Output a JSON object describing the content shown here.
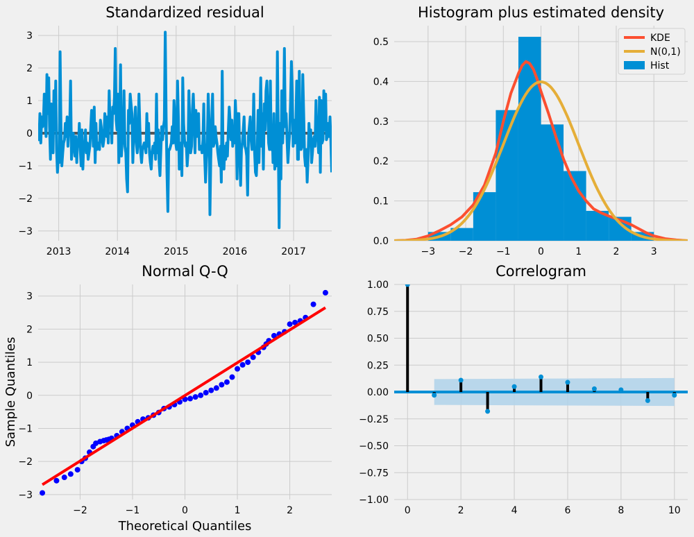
{
  "colors": {
    "background": "#f0f0f0",
    "grid": "#cbcbcb",
    "series_blue": "#008fd5",
    "kde": "#fc4f30",
    "normal": "#e5ae38",
    "qq_points": "#0000ff",
    "qq_line": "#ff0000",
    "zero_line_gray": "#555555",
    "stem": "#000000",
    "band": "#b3d4ea"
  },
  "chart_data": [
    {
      "id": "residual",
      "type": "line",
      "title": "Standardized residual",
      "xlabel": "",
      "ylabel": "",
      "xlim": [
        2012.65,
        2017.65
      ],
      "ylim": [
        -3.3,
        3.3
      ],
      "x_ticks": [
        2013,
        2014,
        2015,
        2016,
        2017
      ],
      "x_tick_labels": [
        "2013",
        "2014",
        "2015",
        "2016",
        "2017"
      ],
      "y_ticks": [
        -3,
        -2,
        -1,
        0,
        1,
        2,
        3
      ],
      "y_tick_labels": [
        "−3",
        "−2",
        "−1",
        "0",
        "1",
        "2",
        "3"
      ],
      "grid": true,
      "zero_line": 0,
      "x_start": 2012.65,
      "x_end": 2017.65,
      "values": [
        0.3,
        -0.2,
        0.6,
        -0.3,
        0.5,
        0.2,
        0.4,
        1.2,
        0.3,
        -0.1,
        1.8,
        0.6,
        1.7,
        0.2,
        -0.8,
        0.9,
        0.7,
        -0.6,
        1.3,
        0.1,
        1.6,
        -0.5,
        -1.2,
        -0.8,
        -0.9,
        2.5,
        0.3,
        -1,
        -0.6,
        -0.3,
        -0.2,
        0.3,
        -0.1,
        0.5,
        -0.4,
        0.2,
        0.3,
        1.6,
        -0.8,
        -0.3,
        0,
        -0.4,
        -0.7,
        -0.1,
        -0.9,
        -0.2,
        -0.4,
        0.3,
        -0.5,
        -1,
        0.1,
        -1.1,
        -0.3,
        -0.5,
        0.1,
        -0.6,
        -0.3,
        -0.8,
        -0.6,
        -0.4,
        0.2,
        0.7,
        0.2,
        -0.4,
        0.8,
        -0.9,
        0.3,
        -0.5,
        -0.3,
        -0.3,
        -0.5,
        0.4,
        0.2,
        -0.2,
        -0.4,
        -0.2,
        0.6,
        0.4,
        -0.1,
        0.5,
        -0.3,
        1.3,
        0.4,
        0.6,
        -0.3,
        0.8,
        0.6,
        1.1,
        2.6,
        0.4,
        0.1,
        1.2,
        -0.9,
        0.1,
        2.1,
        -0.7,
        -0.2,
        -0.3,
        1.3,
        -0.4,
        -0.6,
        -1.4,
        -1.8,
        0.7,
        0.3,
        1.2,
        0.9,
        0.6,
        -0.9,
        -0.1,
        0.3,
        0.8,
        -0.3,
        -0.6,
        -0.3,
        1.2,
        0.2,
        -0.6,
        -0.9,
        -0.5,
        -0.4,
        -0.3,
        -0.4,
        -0.6,
        0.6,
        -0.4,
        0.3,
        -0.6,
        -0.9,
        -1.1,
        -0.6,
        -0.4,
        -0.6,
        -0.3,
        -0.8,
        1.2,
        -0.6,
        0.1,
        -0.9,
        -1.3,
        -0.5,
        0.2,
        -0.2,
        0.2,
        0.4,
        3.1,
        0.5,
        -1.2,
        -2.4,
        -0.5,
        -0.5,
        -0.4,
        -0.3,
        0.2,
        -0.3,
        1,
        0.5,
        -0.3,
        -0.5,
        1.6,
        0.5,
        -1.1,
        -0.8,
        -0.3,
        -1.3,
        1.7,
        0.3,
        -0.2,
        -0.4,
        -0.3,
        -1,
        -0.6,
        1.3,
        0.3,
        -0.6,
        -0.4,
        0.7,
        1.2,
        0.4,
        -0.6,
        0.7,
        -0.1,
        0.3,
        0.6,
        -0.5,
        -0.4,
        -0.4,
        -0.6,
        -0.2,
        0.9,
        -0.7,
        -1.5,
        -0.8,
        -0.3,
        1.2,
        0.4,
        -2.5,
        -0.8,
        0.3,
        1.2,
        -0.4,
        -0.3,
        0.2,
        -0.1,
        -0.3,
        -0.6,
        -0.8,
        -1,
        -0.4,
        -1.5,
        1.9,
        -0.7,
        -1.1,
        -0.4,
        -0.8,
        -0.3,
        -0.7,
        0.1,
        0.8,
        0.4,
        -0.2,
        0.4,
        -0.4,
        0.2,
        -0.3,
        1,
        0.3,
        -1.4,
        0.6,
        0.6,
        -0.7,
        -1.6,
        -0.5,
        -0.3,
        0.1,
        0.5,
        -0.4,
        -0.5,
        -0.7,
        -1.9,
        -0.1,
        0.2,
        0.5,
        -0.2,
        -0.5,
        -0.2,
        1.2,
        -0.6,
        -1.2,
        -1.3,
        -0.5,
        0.7,
        -0.9,
        0.4,
        1.7,
        -0.4,
        0.6,
        -1.1,
        0.9,
        0.1,
        1.3,
        1.6,
        0.8,
        -0.3,
        -0.5,
        1.6,
        -0.5,
        0.2,
        -0.9,
        0.6,
        -1.1,
        -0.8,
        -1,
        2.5,
        -0.2,
        -2.9,
        0.3,
        -1.4,
        1.3,
        -0.3,
        0.5,
        2.6,
        0.2,
        0.6,
        -0.2,
        -0.9,
        -0.4,
        0,
        1,
        2.2,
        1.2,
        -0.4,
        0.4,
        -0.3,
        0.1,
        1.6,
        -0.8,
        -0.8,
        1.9,
        -0.4,
        -0.5,
        -0.4,
        1.8,
        0.6,
        -0.7,
        -1,
        -0.5,
        -1.5,
        -0.8,
        0.3,
        -0.2,
        0.1,
        -0.9,
        -0.6,
        -0.2,
        -0.1,
        -0.4,
        1,
        0,
        -0.1,
        -0.6,
        1.1,
        -1.2,
        1,
        -0.3,
        -0.2,
        1.3,
        0.1,
        1.2,
        -0.2,
        -0.1,
        0.3,
        -0.1,
        0.5,
        -0.2,
        -1.2
      ]
    },
    {
      "id": "histogram",
      "type": "bar",
      "title": "Histogram plus estimated density",
      "xlabel": "",
      "ylabel": "",
      "xlim": [
        -3.9,
        3.9
      ],
      "ylim": [
        0,
        0.54
      ],
      "x_ticks": [
        -3,
        -2,
        -1,
        0,
        1,
        2,
        3
      ],
      "x_tick_labels": [
        "−3",
        "−2",
        "−1",
        "0",
        "1",
        "2",
        "3"
      ],
      "y_ticks": [
        0,
        0.1,
        0.2,
        0.3,
        0.4,
        0.5
      ],
      "y_tick_labels": [
        "0.0",
        "0.1",
        "0.2",
        "0.3",
        "0.4",
        "0.5"
      ],
      "grid": true,
      "legend": {
        "position": "top-right",
        "entries": [
          {
            "label": "KDE",
            "kind": "line",
            "color": "#fc4f30"
          },
          {
            "label": "N(0,1)",
            "kind": "line",
            "color": "#e5ae38"
          },
          {
            "label": "Hist",
            "kind": "patch",
            "color": "#008fd5"
          }
        ]
      },
      "bins": {
        "edges": [
          -3.0,
          -2.4,
          -1.8,
          -1.2,
          -0.6,
          0.0,
          0.6,
          1.2,
          1.8,
          2.4,
          3.0
        ],
        "heights": [
          0.022,
          0.032,
          0.122,
          0.328,
          0.512,
          0.292,
          0.175,
          0.075,
          0.06,
          0.022
        ]
      },
      "kde": {
        "x": [
          -3.9,
          -3.6,
          -3.3,
          -3.0,
          -2.7,
          -2.4,
          -2.1,
          -1.8,
          -1.5,
          -1.2,
          -1.0,
          -0.8,
          -0.6,
          -0.5,
          -0.4,
          -0.3,
          -0.2,
          -0.1,
          0.0,
          0.2,
          0.4,
          0.6,
          0.8,
          1.0,
          1.2,
          1.4,
          1.6,
          1.8,
          2.0,
          2.2,
          2.4,
          2.6,
          2.8,
          3.0,
          3.3,
          3.6,
          3.9
        ],
        "y": [
          0.0,
          0.001,
          0.004,
          0.012,
          0.025,
          0.04,
          0.06,
          0.09,
          0.14,
          0.22,
          0.3,
          0.37,
          0.42,
          0.44,
          0.45,
          0.445,
          0.43,
          0.405,
          0.375,
          0.32,
          0.26,
          0.205,
          0.16,
          0.125,
          0.1,
          0.08,
          0.07,
          0.062,
          0.055,
          0.048,
          0.04,
          0.03,
          0.02,
          0.012,
          0.005,
          0.002,
          0.0
        ]
      },
      "normal": {
        "mean": 0,
        "std": 1
      }
    },
    {
      "id": "qq",
      "type": "scatter",
      "title": "Normal Q-Q",
      "xlabel": "Theoretical Quantiles",
      "ylabel": "Sample Quantiles",
      "xlim": [
        -2.8,
        2.8
      ],
      "ylim": [
        -3.15,
        3.35
      ],
      "x_ticks": [
        -2,
        -1,
        0,
        1,
        2
      ],
      "x_tick_labels": [
        "−2",
        "−1",
        "0",
        "1",
        "2"
      ],
      "y_ticks": [
        -3,
        -2,
        -1,
        0,
        1,
        2,
        3
      ],
      "y_tick_labels": [
        "−3",
        "−2",
        "−1",
        "0",
        "1",
        "2",
        "3"
      ],
      "grid": true,
      "reference_line": {
        "x": [
          -2.72,
          2.68
        ],
        "y": [
          -2.7,
          2.65
        ]
      },
      "points": {
        "x": [
          -2.72,
          -2.45,
          -2.3,
          -2.18,
          -2.05,
          -1.97,
          -1.9,
          -1.82,
          -1.75,
          -1.7,
          -1.62,
          -1.55,
          -1.5,
          -1.45,
          -1.4,
          -1.3,
          -1.2,
          -1.1,
          -1.0,
          -0.9,
          -0.8,
          -0.7,
          -0.6,
          -0.5,
          -0.4,
          -0.3,
          -0.2,
          -0.1,
          0.0,
          0.1,
          0.2,
          0.3,
          0.4,
          0.5,
          0.6,
          0.7,
          0.8,
          0.9,
          1.0,
          1.1,
          1.2,
          1.3,
          1.4,
          1.5,
          1.55,
          1.6,
          1.7,
          1.8,
          1.9,
          2.0,
          2.1,
          2.2,
          2.3,
          2.45,
          2.68
        ],
        "y": [
          -2.95,
          -2.58,
          -2.48,
          -2.38,
          -2.25,
          -2.0,
          -1.9,
          -1.72,
          -1.55,
          -1.45,
          -1.4,
          -1.37,
          -1.35,
          -1.33,
          -1.3,
          -1.22,
          -1.1,
          -1.0,
          -0.9,
          -0.8,
          -0.72,
          -0.68,
          -0.6,
          -0.52,
          -0.4,
          -0.35,
          -0.28,
          -0.2,
          -0.12,
          -0.1,
          -0.05,
          0.0,
          0.08,
          0.15,
          0.22,
          0.32,
          0.4,
          0.55,
          0.8,
          0.92,
          1.0,
          1.15,
          1.3,
          1.45,
          1.55,
          1.65,
          1.8,
          1.85,
          1.92,
          2.15,
          2.2,
          2.25,
          2.35,
          2.75,
          3.1
        ]
      }
    },
    {
      "id": "correlogram",
      "type": "bar",
      "title": "Correlogram",
      "xlabel": "",
      "ylabel": "",
      "xlim": [
        -0.5,
        10.5
      ],
      "ylim": [
        -1.0,
        1.0
      ],
      "x_ticks": [
        0,
        2,
        4,
        6,
        8,
        10
      ],
      "x_tick_labels": [
        "0",
        "2",
        "4",
        "6",
        "8",
        "10"
      ],
      "y_ticks": [
        -1.0,
        -0.75,
        -0.5,
        -0.25,
        0.0,
        0.25,
        0.5,
        0.75,
        1.0
      ],
      "y_tick_labels": [
        "−1.00",
        "−0.75",
        "−0.50",
        "−0.25",
        "0.00",
        "0.25",
        "0.50",
        "0.75",
        "1.00"
      ],
      "grid": true,
      "lags": [
        0,
        1,
        2,
        3,
        4,
        5,
        6,
        7,
        8,
        9,
        10
      ],
      "values": [
        1.0,
        -0.03,
        0.11,
        -0.18,
        0.05,
        0.14,
        0.09,
        0.03,
        0.02,
        -0.08,
        -0.03
      ],
      "confidence_band": {
        "x": [
          1,
          10
        ],
        "lower": [
          -0.12,
          -0.13
        ],
        "upper": [
          0.12,
          0.13
        ]
      }
    }
  ]
}
